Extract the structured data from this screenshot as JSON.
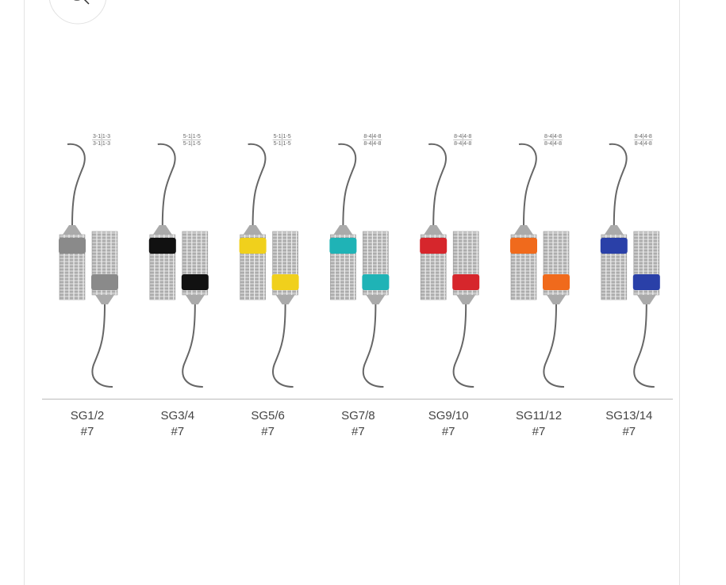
{
  "instruments": [
    {
      "name": "SG1/2",
      "size": "#7",
      "code_top": "3-1|1-3",
      "code_bottom": "3-1|1-3",
      "color": "#8a8a8a"
    },
    {
      "name": "SG3/4",
      "size": "#7",
      "code_top": "5-1|1-5",
      "code_bottom": "5-1|1-5",
      "color": "#111111"
    },
    {
      "name": "SG5/6",
      "size": "#7",
      "code_top": "5-1|1-5",
      "code_bottom": "5-1|1-5",
      "color": "#f0d01c"
    },
    {
      "name": "SG7/8",
      "size": "#7",
      "code_top": "8-4|4-8",
      "code_bottom": "8-4|4-8",
      "color": "#1fb3b6"
    },
    {
      "name": "SG9/10",
      "size": "#7",
      "code_top": "8-4|4-8",
      "code_bottom": "8-4|4-8",
      "color": "#d6262c"
    },
    {
      "name": "SG11/12",
      "size": "#7",
      "code_top": "8-4|4-8",
      "code_bottom": "8-4|4-8",
      "color": "#f06a1c"
    },
    {
      "name": "SG13/14",
      "size": "#7",
      "code_top": "8-4|4-8",
      "code_bottom": "8-4|4-8",
      "color": "#2a40a8"
    }
  ]
}
